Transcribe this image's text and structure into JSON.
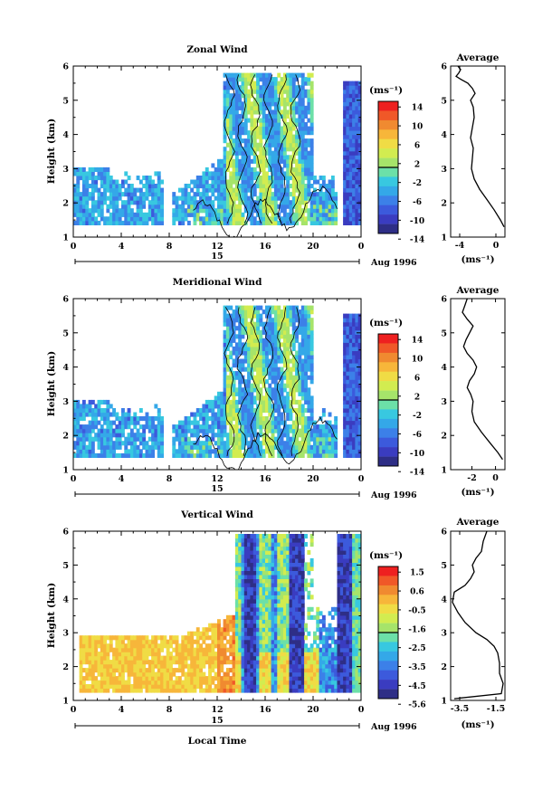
{
  "figure": {
    "x_axis_label": "Local Time",
    "date_label": "Aug 1996",
    "day_label": "15"
  },
  "chart_data": [
    {
      "type": "heatmap",
      "title": "Zonal Wind",
      "ylabel": "Height (km)",
      "xlim": [
        0,
        24
      ],
      "ylim": [
        1,
        6
      ],
      "x_ticks": [
        "0",
        "4",
        "8",
        "12",
        "16",
        "20",
        "0"
      ],
      "y_ticks": [
        "1",
        "2",
        "3",
        "4",
        "5",
        "6"
      ],
      "colorbar": {
        "label": "(ms⁻¹)",
        "ticks": [
          "14",
          "10",
          "6",
          "2",
          "-2",
          "-6",
          "-10",
          "-14"
        ],
        "colors": [
          "#ee2020",
          "#f05828",
          "#f08a30",
          "#f7b63a",
          "#f0dc45",
          "#d2ec50",
          "#a6e46a",
          "#6ce0a8",
          "#38c8e0",
          "#34a8e8",
          "#3c80e8",
          "#3c5adc",
          "#3a3cc0",
          "#2e2e86"
        ]
      },
      "profile": {
        "title": "Average",
        "xlabel": "(ms⁻¹)",
        "xlim": [
          -5,
          1
        ],
        "x_ticks": [
          "-4",
          "0"
        ],
        "x": [
          0.9,
          0.5,
          -0.2,
          -1.0,
          -1.8,
          -2.4,
          -2.7,
          -2.6,
          -2.5,
          -2.8,
          -2.6,
          -2.4,
          -2.5,
          -2.8,
          -2.3,
          -2.6,
          -3.1,
          -3.8,
          -4.4,
          -4.1,
          -3.9,
          -4.2
        ],
        "y": [
          1.3,
          1.5,
          1.8,
          2.1,
          2.4,
          2.7,
          3.0,
          3.3,
          3.6,
          3.9,
          4.2,
          4.5,
          4.8,
          5.0,
          5.2,
          5.35,
          5.5,
          5.6,
          5.7,
          5.8,
          5.9,
          6.0
        ]
      }
    },
    {
      "type": "heatmap",
      "title": "Meridional Wind",
      "ylabel": "Height (km)",
      "xlim": [
        0,
        24
      ],
      "ylim": [
        1,
        6
      ],
      "x_ticks": [
        "0",
        "4",
        "8",
        "12",
        "16",
        "20",
        "0"
      ],
      "y_ticks": [
        "1",
        "2",
        "3",
        "4",
        "5",
        "6"
      ],
      "colorbar": {
        "label": "(ms⁻¹)",
        "ticks": [
          "14",
          "10",
          "6",
          "2",
          "-2",
          "-6",
          "-10",
          "-14"
        ],
        "colors": [
          "#ee2020",
          "#f05828",
          "#f08a30",
          "#f7b63a",
          "#f0dc45",
          "#d2ec50",
          "#a6e46a",
          "#6ce0a8",
          "#38c8e0",
          "#34a8e8",
          "#3c80e8",
          "#3c5adc",
          "#3a3cc0",
          "#2e2e86"
        ]
      },
      "profile": {
        "title": "Average",
        "xlabel": "(ms⁻¹)",
        "xlim": [
          -3.8,
          0.8
        ],
        "x_ticks": [
          "-2",
          "0"
        ],
        "x": [
          0.6,
          0.2,
          -0.5,
          -1.2,
          -1.8,
          -2.0,
          -1.9,
          -2.1,
          -2.4,
          -2.2,
          -1.8,
          -1.6,
          -1.9,
          -2.4,
          -2.7,
          -2.5,
          -2.2,
          -1.9,
          -2.4,
          -2.8,
          -2.6,
          -2.4
        ],
        "y": [
          1.3,
          1.5,
          1.8,
          2.1,
          2.4,
          2.7,
          3.0,
          3.2,
          3.4,
          3.6,
          3.8,
          4.0,
          4.2,
          4.4,
          4.6,
          4.8,
          5.0,
          5.2,
          5.4,
          5.6,
          5.8,
          6.0
        ]
      }
    },
    {
      "type": "heatmap",
      "title": "Vertical Wind",
      "ylabel": "Height (km)",
      "xlim": [
        0,
        24
      ],
      "ylim": [
        1,
        6
      ],
      "x_ticks": [
        "0",
        "4",
        "8",
        "12",
        "16",
        "20",
        "0"
      ],
      "y_ticks": [
        "1",
        "2",
        "3",
        "4",
        "5",
        "6"
      ],
      "colorbar": {
        "label": "(ms⁻¹)",
        "ticks": [
          "1.5",
          "0.6",
          "-0.5",
          "-1.6",
          "-2.5",
          "-3.5",
          "-4.5",
          "-5.6"
        ],
        "colors": [
          "#ee2020",
          "#f05828",
          "#f08a30",
          "#f7b63a",
          "#f0dc45",
          "#d2ec50",
          "#a6e46a",
          "#6ce0a8",
          "#38c8e0",
          "#34a8e8",
          "#3c80e8",
          "#3c5adc",
          "#3a3cc0",
          "#2e2e86"
        ]
      },
      "profile": {
        "title": "Average",
        "xlabel": "(ms⁻¹)",
        "xlim": [
          -4.0,
          -1.0
        ],
        "x_ticks": [
          "-3.5",
          "-1.5"
        ],
        "x": [
          -3.8,
          -1.2,
          -1.1,
          -1.3,
          -1.3,
          -1.4,
          -1.6,
          -2.0,
          -2.6,
          -3.2,
          -3.6,
          -3.9,
          -3.8,
          -3.2,
          -2.9,
          -2.7,
          -2.8,
          -2.6,
          -2.3,
          -2.2,
          -2.0
        ],
        "y": [
          1.05,
          1.2,
          1.5,
          1.8,
          2.1,
          2.4,
          2.6,
          2.8,
          3.0,
          3.3,
          3.6,
          3.9,
          4.2,
          4.4,
          4.6,
          4.8,
          5.0,
          5.2,
          5.4,
          5.7,
          6.0
        ]
      }
    }
  ]
}
